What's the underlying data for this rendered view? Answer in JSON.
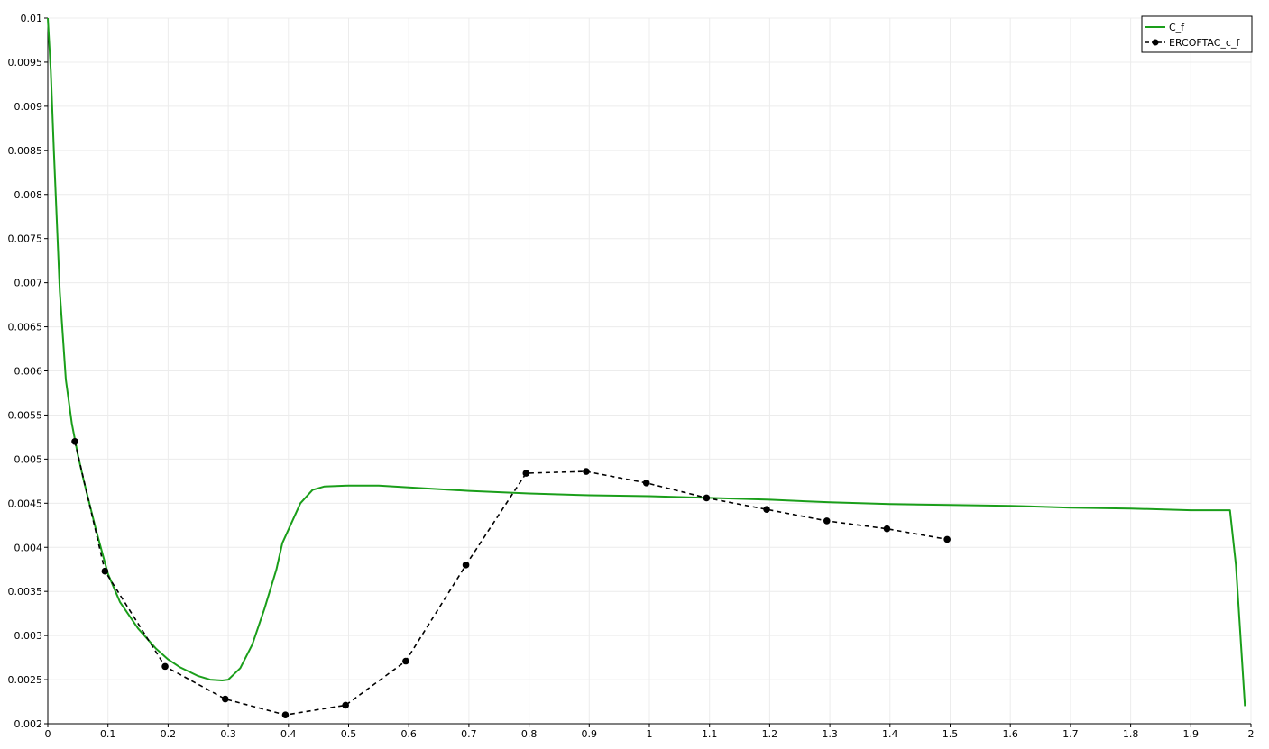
{
  "chart_data": {
    "type": "line",
    "title": "",
    "xlabel": "",
    "ylabel": "",
    "xlim": [
      0,
      2
    ],
    "ylim": [
      0.002,
      0.01
    ],
    "x_ticks": [
      "0",
      "0.1",
      "0.2",
      "0.3",
      "0.4",
      "0.5",
      "0.6",
      "0.7",
      "0.8",
      "0.9",
      "1",
      "1.1",
      "1.2",
      "1.3",
      "1.4",
      "1.5",
      "1.6",
      "1.7",
      "1.8",
      "1.9",
      "2"
    ],
    "y_ticks": [
      "0.002",
      "0.0025",
      "0.003",
      "0.0035",
      "0.004",
      "0.0045",
      "0.005",
      "0.0055",
      "0.006",
      "0.0065",
      "0.007",
      "0.0075",
      "0.008",
      "0.0085",
      "0.009",
      "0.0095",
      "0.01"
    ],
    "grid": true,
    "legend_position": "top-right",
    "series": [
      {
        "name": "C_f",
        "color": "#1a9e1a",
        "style": "solid",
        "markers": false,
        "x": [
          0.0,
          0.005,
          0.01,
          0.015,
          0.02,
          0.03,
          0.04,
          0.05,
          0.06,
          0.08,
          0.1,
          0.12,
          0.15,
          0.18,
          0.2,
          0.22,
          0.25,
          0.27,
          0.29,
          0.3,
          0.32,
          0.34,
          0.36,
          0.38,
          0.39,
          0.4,
          0.42,
          0.44,
          0.46,
          0.5,
          0.55,
          0.6,
          0.7,
          0.8,
          0.9,
          1.0,
          1.1,
          1.2,
          1.3,
          1.4,
          1.5,
          1.6,
          1.7,
          1.8,
          1.9,
          1.965,
          1.975,
          1.99
        ],
        "y": [
          0.01,
          0.0094,
          0.0085,
          0.0077,
          0.0069,
          0.0059,
          0.0054,
          0.00505,
          0.00475,
          0.0042,
          0.0037,
          0.00338,
          0.00308,
          0.00285,
          0.00273,
          0.00264,
          0.00254,
          0.0025,
          0.00249,
          0.0025,
          0.00263,
          0.0029,
          0.0033,
          0.00375,
          0.00405,
          0.0042,
          0.0045,
          0.00465,
          0.00469,
          0.0047,
          0.0047,
          0.00468,
          0.00464,
          0.00461,
          0.00459,
          0.00458,
          0.00456,
          0.00454,
          0.00451,
          0.00449,
          0.00448,
          0.00447,
          0.00445,
          0.00444,
          0.00442,
          0.00442,
          0.0038,
          0.0022
        ]
      },
      {
        "name": "ERCOFTAC_c_f",
        "color": "#000000",
        "style": "dashed",
        "markers": true,
        "x": [
          0.045,
          0.095,
          0.195,
          0.295,
          0.395,
          0.495,
          0.595,
          0.695,
          0.795,
          0.895,
          0.995,
          1.095,
          1.195,
          1.295,
          1.395,
          1.495
        ],
        "y": [
          0.0052,
          0.00373,
          0.00265,
          0.00228,
          0.0021,
          0.00221,
          0.00271,
          0.0038,
          0.00484,
          0.00486,
          0.00473,
          0.00456,
          0.00443,
          0.0043,
          0.00421,
          0.00409
        ]
      }
    ]
  }
}
